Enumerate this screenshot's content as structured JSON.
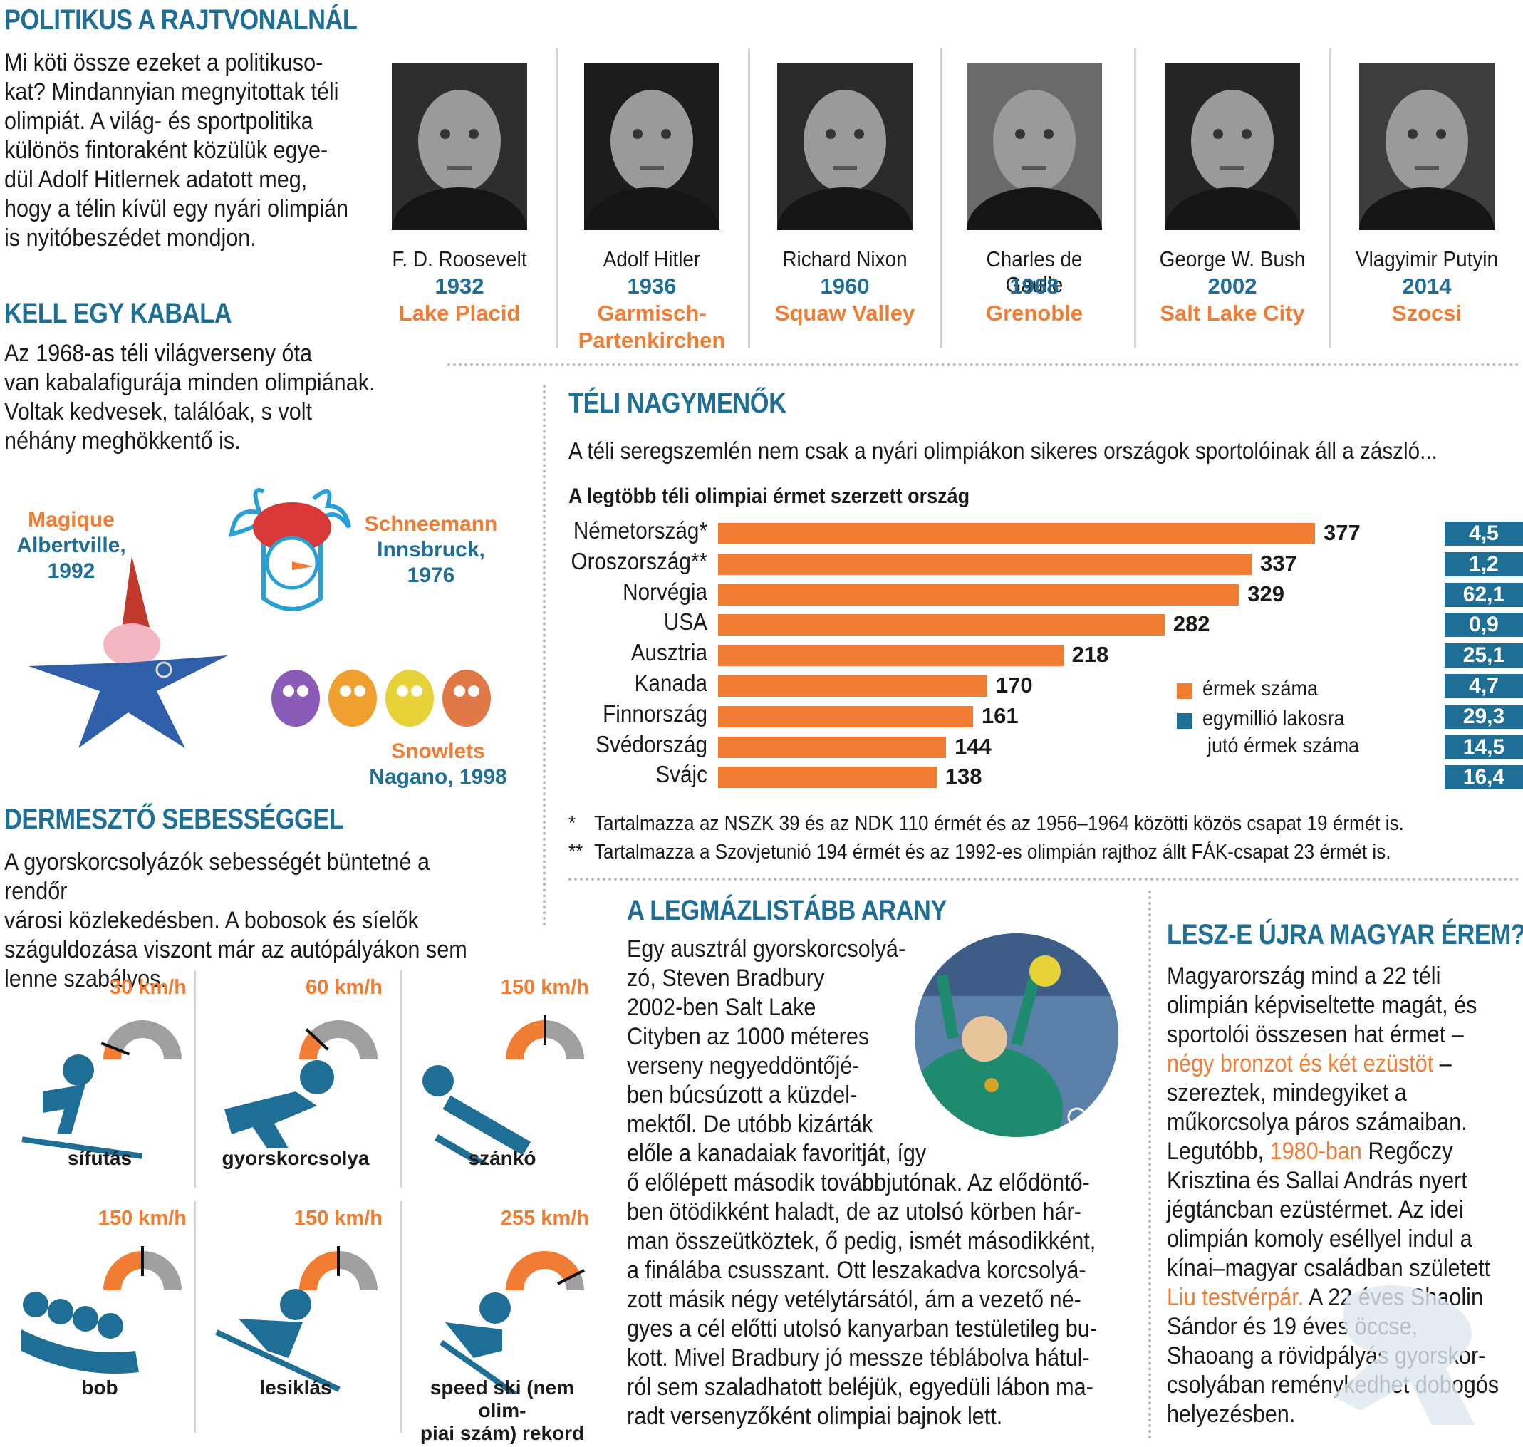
{
  "politicians": {
    "title": "POLITIKUS A RAJTVONALNÁL",
    "intro": [
      "Mi köti össze ezeket a politikuso-",
      "kat?  Mindannyian megnyitottak téli",
      "olimpiát.  A világ- és sportpolitika",
      "különös fintoraként közülük egye-",
      "dül Adolf Hitlernek adatott meg,",
      "hogy a télin kívül egy nyári olimpián",
      "is nyitóbeszédet mondjon."
    ],
    "people": [
      {
        "name": "F. D. Roosevelt",
        "year": "1932",
        "city": [
          "Lake Placid"
        ]
      },
      {
        "name": "Adolf Hitler",
        "year": "1936",
        "city": [
          "Garmisch-",
          "Partenkirchen"
        ]
      },
      {
        "name": "Richard Nixon",
        "year": "1960",
        "city": [
          "Squaw Valley"
        ]
      },
      {
        "name": "Charles de Gaulle",
        "year": "1968",
        "city": [
          "Grenoble"
        ]
      },
      {
        "name": "George W. Bush",
        "year": "2002",
        "city": [
          "Salt Lake City"
        ]
      },
      {
        "name": "Vlagyimir Putyin",
        "year": "2014",
        "city": [
          "Szocsi"
        ]
      }
    ]
  },
  "mascots": {
    "title": "KELL EGY KABALA",
    "text": [
      "Az 1968-as téli világverseny óta",
      "van kabalafigurája minden olimpiának.",
      "Voltak kedvesek, találóak, s volt",
      "néhány meghökkentő is."
    ],
    "items": [
      {
        "name": "Magique",
        "place": "Albertville,",
        "year": "1992"
      },
      {
        "name": "Schneemann",
        "place": "Innsbruck,",
        "year": "1976"
      },
      {
        "name": "Snowlets",
        "place": "Nagano, 1998",
        "year": ""
      }
    ]
  },
  "speed": {
    "title": "DERMESZTŐ SEBESSÉGGEL",
    "text": [
      "A gyorskorcsolyázók sebességét büntetné a rendőr",
      "városi közlekedésben. A bobosok és síelők",
      "száguldozása viszont már az autópályákon sem",
      "lenne szabályos."
    ],
    "items": [
      {
        "label": "sífutás",
        "speed": "30 km/h",
        "fraction": 0.12
      },
      {
        "label": "gyorskorcsolya",
        "speed": "60 km/h",
        "fraction": 0.24
      },
      {
        "label": "szánkó",
        "speed": "150 km/h",
        "fraction": 0.5
      },
      {
        "label": "bob",
        "speed": "150 km/h",
        "fraction": 0.5
      },
      {
        "label": "lesiklás",
        "speed": "150 km/h",
        "fraction": 0.5
      },
      {
        "label": [
          "speed ski (nem olim-",
          "piai szám) rekord"
        ],
        "speed": "255 km/h",
        "fraction": 0.85
      }
    ]
  },
  "chart_section": {
    "title": "TÉLI NAGYMENŐK",
    "subtitle": "A téli seregszemlén nem csak a nyári olimpiákon sikeres országok sportolóinak áll a zászló...",
    "footnotes": [
      {
        "mark": "*",
        "text": "Tartalmazza az NSZK 39 és az NDK 110 érmét és az 1956–1964 közötti közös csapat 19 érmét is."
      },
      {
        "mark": "**",
        "text": "Tartalmazza a Szovjetunió 194 érmét és az 1992-es olimpián rajthoz állt FÁK-csapat 23 érmét is."
      }
    ]
  },
  "chart_data": {
    "type": "bar",
    "title": "A legtöbb téli olimpiai érmet szerzett ország",
    "orientation": "horizontal",
    "categories": [
      "Németország*",
      "Oroszország**",
      "Norvégia",
      "USA",
      "Ausztria",
      "Kanada",
      "Finnország",
      "Svédország",
      "Svájc"
    ],
    "series": [
      {
        "name": "érmek száma",
        "color": "#f07d33",
        "values": [
          377,
          337,
          329,
          282,
          218,
          170,
          161,
          144,
          138
        ]
      },
      {
        "name": "egymillió lakosra jutó érmek száma",
        "color": "#1f6e96",
        "values": [
          "4,5",
          "1,2",
          "62,1",
          "0,9",
          "25,1",
          "4,7",
          "29,3",
          "14,5",
          "16,4"
        ]
      }
    ],
    "legend": {
      "item1": "érmek száma",
      "item2_line1": "egymillió lakosra",
      "item2_line2": "jutó érmek száma",
      "position": "right"
    },
    "xlim": [
      0,
      377
    ],
    "grid": false
  },
  "gold": {
    "title": "A LEGMÁZLISTÁBB ARANY",
    "lines_narrow": [
      "Egy ausztrál gyorskorcsolyá-",
      "zó, Steven Bradbury",
      "2002-ben Salt Lake",
      "Cityben az 1000 méteres",
      "verseny negyeddöntőjé-",
      "ben búcsúzott a küzdel-",
      "mektől. De utóbb kizárták",
      "előle a kanadaiak favoritját, így"
    ],
    "lines_wide": [
      "ő előlépett második továbbjutónak. Az elődöntő-",
      "ben ötödikként haladt, de az utolsó körben hár-",
      "man összeütköztek, ő pedig, ismét másodikként,",
      "a finálába csusszant. Ott leszakadva korcsolyá-",
      "zott másik négy vetélytársától, ám a vezető né-",
      "gyes a cél előtti utolsó kanyarban testületileg bu-",
      "kott. Mivel Bradbury jó messze téblábolva hátul-",
      "ról sem szaladhatott beléjük, egyedüli lábon ma-",
      "radt versenyzőként olimpiai bajnok lett."
    ]
  },
  "hungary": {
    "title": "LESZ-E ÚJRA MAGYAR ÉREM?",
    "l1": "Magyarország mind a 22 téli",
    "l2": "olimpián képviseltette magát, és",
    "l3": "sportolói összesen hat érmet –",
    "l4_hl": "négy bronzot és két ezüstöt",
    "l4_rest": " –",
    "l5": "szereztek, mindegyiket a",
    "l6": "műkorcsolya páros számaiban.",
    "l7_pre": "Legutóbb, ",
    "l7_hl": "1980-ban",
    "l7_rest": " Regőczy",
    "l8": "Krisztina és Sallai András nyert",
    "l9": "jégtáncban ezüstérmet. Az idei",
    "l10": "olimpián komoly eséllyel indul a",
    "l11": "kínai–magyar családban született",
    "l12_hl": "Liu testvérpár.",
    "l12_rest": " A 22 éves Shaolin",
    "l13": "Sándor és 19 éves öccse,",
    "l14": "Shaoang a rövidpályás gyorskor-",
    "l15": "csolyában reménykedhet dobogós",
    "l16": "helyezésben."
  }
}
